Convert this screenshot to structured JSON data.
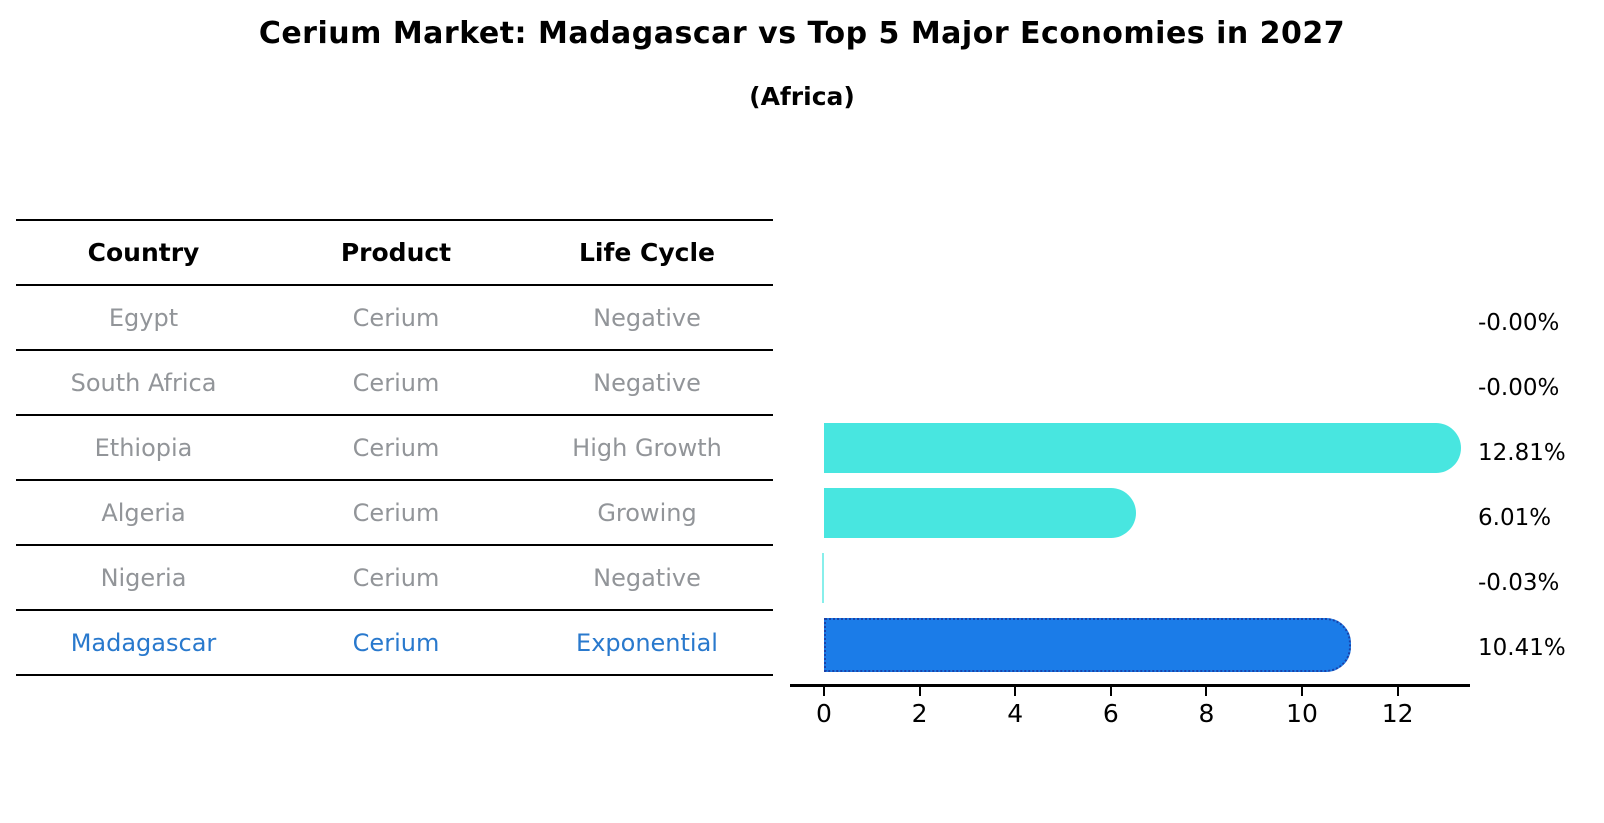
{
  "title": "Cerium Market: Madagascar vs Top 5 Major Economies in 2027",
  "subtitle": "(Africa)",
  "table": {
    "headers": [
      "Country",
      "Product",
      "Life Cycle"
    ],
    "rows": [
      {
        "country": "Egypt",
        "product": "Cerium",
        "life_cycle": "Negative",
        "highlight": false
      },
      {
        "country": "South Africa",
        "product": "Cerium",
        "life_cycle": "Negative",
        "highlight": false
      },
      {
        "country": "Ethiopia",
        "product": "Cerium",
        "life_cycle": "High Growth",
        "highlight": false
      },
      {
        "country": "Algeria",
        "product": "Cerium",
        "life_cycle": "Growing",
        "highlight": false
      },
      {
        "country": "Nigeria",
        "product": "Cerium",
        "life_cycle": "Negative",
        "highlight": false
      },
      {
        "country": "Madagascar",
        "product": "Cerium",
        "life_cycle": "Exponential",
        "highlight": true
      }
    ]
  },
  "chart_data": {
    "type": "bar",
    "orientation": "horizontal",
    "title": "Cerium Market: Madagascar vs Top 5 Major Economies in 2027",
    "subtitle": "(Africa)",
    "categories": [
      "Egypt",
      "South Africa",
      "Ethiopia",
      "Algeria",
      "Nigeria",
      "Madagascar"
    ],
    "values": [
      -0.0,
      -0.0,
      12.81,
      6.01,
      -0.03,
      10.41
    ],
    "value_labels": [
      "-0.00%",
      "-0.00%",
      "12.81%",
      "6.01%",
      "-0.03%",
      "10.41%"
    ],
    "unit": "%",
    "xticks": [
      "0",
      "2",
      "4",
      "6",
      "8",
      "10",
      "12"
    ],
    "xtick_values": [
      0,
      2,
      4,
      6,
      8,
      10,
      12
    ],
    "xlim": [
      -0.7,
      13.5
    ],
    "grid": false,
    "legend": null,
    "highlight_index": 5,
    "colors": {
      "bar": "#48E6E0",
      "highlight_bar": "#1B7CE8",
      "highlight_border": "#1A41A8",
      "highlight_text": "#2979CD",
      "row_text": "#929599",
      "axis": "#000000"
    }
  }
}
